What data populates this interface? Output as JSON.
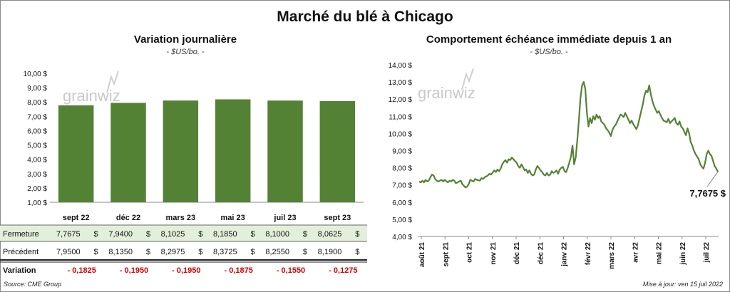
{
  "title": "Marché du blé à Chicago",
  "source": "Source: CME Group",
  "updated": "Mise à jour: ven 15 juil 2022",
  "watermark": "grainwiz",
  "colors": {
    "green": "#548235",
    "line": "#548235",
    "table_fill": "#e2efda",
    "negative": "#d40000"
  },
  "chart_data": [
    {
      "type": "bar",
      "title": "Variation journalière",
      "subtitle": "- $US/bo. -",
      "categories": [
        "sept 22",
        "déc 22",
        "mars 23",
        "mai 23",
        "juil 23",
        "sept 23"
      ],
      "ylim": [
        1,
        10
      ],
      "yticks": [
        "10,00 $",
        "9,00 $",
        "8,00 $",
        "7,00 $",
        "6,00 $",
        "5,00 $",
        "4,00 $",
        "3,00 $",
        "2,00 $",
        "1,00 $"
      ],
      "values": [
        7.7675,
        7.94,
        8.1025,
        8.185,
        8.1,
        8.0625
      ],
      "table": {
        "rows": [
          {
            "label": "Fermeture",
            "values": [
              "7,7675",
              "7,9400",
              "8,1025",
              "8,1850",
              "8,1000",
              "8,0625"
            ]
          },
          {
            "label": "Précédent",
            "values": [
              "7,9500",
              "8,1350",
              "8,2975",
              "8,3725",
              "8,2550",
              "8,1900"
            ]
          },
          {
            "label": "Variation",
            "values": [
              "- 0,1825",
              "- 0,1950",
              "- 0,1950",
              "- 0,1875",
              "- 0,1550",
              "- 0,1275"
            ]
          }
        ],
        "currency": "$"
      }
    },
    {
      "type": "line",
      "title": "Comportement échéance immédiate depuis 1 an",
      "subtitle": "- $US/bo. -",
      "ylim": [
        4,
        14
      ],
      "yticks": [
        "14,00 $",
        "13,00 $",
        "12,00 $",
        "11,00 $",
        "10,00 $",
        "9,00 $",
        "8,00 $",
        "7,00 $",
        "6,00 $",
        "5,00 $",
        "4,00 $"
      ],
      "xticks": [
        "août 21",
        "sept 21",
        "oct 21",
        "nov 21",
        "déc 21",
        "déc 21",
        "janv 22",
        "févr 22",
        "mars 22",
        "avr 22",
        "mai 22",
        "juin 22",
        "juil 22"
      ],
      "last_label": "7,7675 $",
      "y": [
        7.2,
        7.15,
        7.25,
        7.15,
        7.3,
        7.2,
        7.25,
        7.45,
        7.6,
        7.55,
        7.35,
        7.25,
        7.2,
        7.25,
        7.3,
        7.2,
        7.3,
        7.22,
        7.15,
        7.25,
        7.2,
        7.3,
        7.25,
        7.1,
        7.15,
        7.2,
        7.25,
        7.05,
        6.95,
        6.85,
        6.9,
        7.05,
        7.3,
        7.25,
        7.2,
        7.35,
        7.3,
        7.28,
        7.25,
        7.4,
        7.35,
        7.45,
        7.5,
        7.55,
        7.65,
        7.6,
        7.72,
        7.85,
        7.75,
        7.9,
        7.8,
        7.95,
        8.2,
        8.35,
        8.45,
        8.3,
        8.5,
        8.45,
        8.6,
        8.5,
        8.4,
        8.3,
        8.1,
        8.0,
        8.2,
        8.05,
        7.85,
        7.9,
        7.7,
        7.85,
        7.65,
        7.55,
        7.6,
        7.9,
        8.1,
        8.0,
        7.85,
        7.75,
        7.6,
        7.55,
        7.7,
        7.55,
        7.6,
        7.8,
        7.7,
        7.75,
        7.85,
        7.65,
        7.9,
        8.0,
        8.05,
        7.8,
        7.75,
        8.0,
        8.3,
        8.65,
        9.3,
        8.2,
        8.6,
        9.6,
        10.8,
        12.1,
        12.8,
        13.0,
        12.6,
        11.2,
        10.4,
        10.9,
        10.6,
        11.0,
        10.8,
        11.1,
        10.9,
        11.0,
        10.7,
        10.6,
        10.5,
        10.3,
        10.2,
        10.05,
        9.85,
        10.2,
        10.4,
        10.5,
        10.7,
        10.9,
        11.1,
        11.05,
        10.95,
        11.2,
        11.0,
        10.8,
        10.6,
        10.75,
        10.55,
        10.4,
        10.25,
        10.5,
        10.9,
        11.3,
        11.7,
        12.2,
        12.5,
        12.4,
        12.8,
        12.3,
        11.9,
        11.6,
        11.4,
        11.2,
        11.3,
        11.1,
        10.9,
        10.75,
        10.7,
        10.65,
        10.85,
        10.6,
        10.7,
        10.8,
        10.9,
        10.6,
        10.5,
        10.7,
        10.4,
        10.3,
        10.1,
        9.9,
        10.3,
        10.0,
        9.5,
        9.3,
        9.0,
        8.8,
        8.65,
        8.5,
        8.2,
        8.05,
        7.95,
        8.3,
        8.8,
        9.0,
        8.8,
        8.7,
        8.4,
        8.1,
        7.95,
        7.7675
      ]
    }
  ]
}
